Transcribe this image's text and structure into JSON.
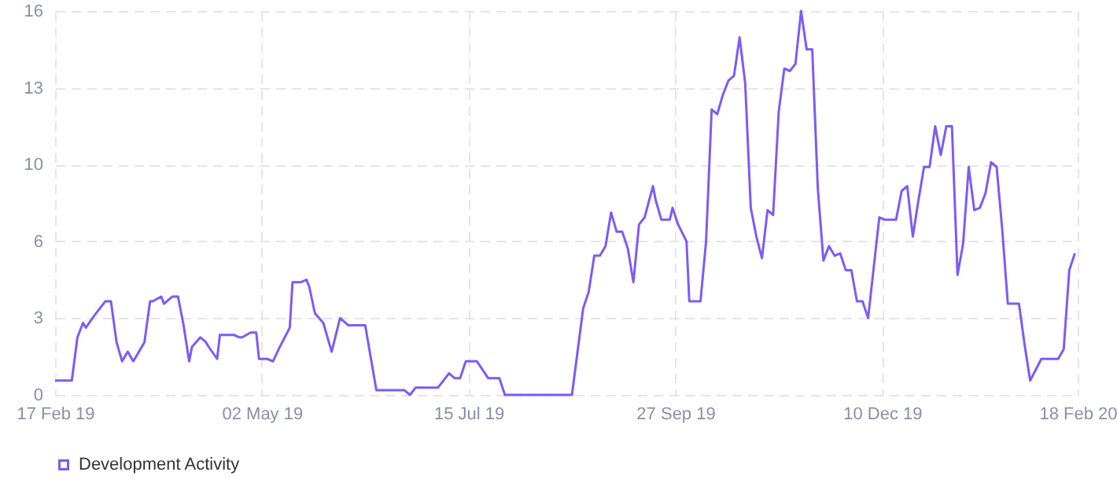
{
  "chart_data": {
    "type": "line",
    "x": [
      "2019-02-17",
      "2019-02-23",
      "2019-02-25",
      "2019-02-27",
      "2019-02-28",
      "2019-03-03",
      "2019-03-05",
      "2019-03-07",
      "2019-03-09",
      "2019-03-11",
      "2019-03-13",
      "2019-03-15",
      "2019-03-17",
      "2019-03-18",
      "2019-03-21",
      "2019-03-23",
      "2019-03-24",
      "2019-03-27",
      "2019-03-28",
      "2019-03-31",
      "2019-04-02",
      "2019-04-04",
      "2019-04-06",
      "2019-04-07",
      "2019-04-10",
      "2019-04-12",
      "2019-04-13",
      "2019-04-16",
      "2019-04-17",
      "2019-04-22",
      "2019-04-24",
      "2019-04-25",
      "2019-04-28",
      "2019-04-30",
      "2019-05-01",
      "2019-05-04",
      "2019-05-06",
      "2019-05-08",
      "2019-05-12",
      "2019-05-13",
      "2019-05-16",
      "2019-05-18",
      "2019-05-19",
      "2019-05-21",
      "2019-05-24",
      "2019-05-26",
      "2019-05-27",
      "2019-05-30",
      "2019-06-02",
      "2019-06-08",
      "2019-06-12",
      "2019-06-22",
      "2019-06-24",
      "2019-06-26",
      "2019-07-04",
      "2019-07-08",
      "2019-07-10",
      "2019-07-12",
      "2019-07-14",
      "2019-07-18",
      "2019-07-22",
      "2019-07-26",
      "2019-07-28",
      "2019-08-07",
      "2019-08-21",
      "2019-08-25",
      "2019-08-27",
      "2019-08-29",
      "2019-08-31",
      "2019-09-02",
      "2019-09-04",
      "2019-09-06",
      "2019-09-08",
      "2019-09-10",
      "2019-09-12",
      "2019-09-14",
      "2019-09-16",
      "2019-09-19",
      "2019-09-20",
      "2019-09-22",
      "2019-09-25",
      "2019-09-26",
      "2019-09-28",
      "2019-10-01",
      "2019-10-02",
      "2019-10-06",
      "2019-10-08",
      "2019-10-10",
      "2019-10-12",
      "2019-10-14",
      "2019-10-16",
      "2019-10-18",
      "2019-10-20",
      "2019-10-22",
      "2019-10-24",
      "2019-10-26",
      "2019-10-28",
      "2019-10-30",
      "2019-11-01",
      "2019-11-03",
      "2019-11-05",
      "2019-11-07",
      "2019-11-09",
      "2019-11-11",
      "2019-11-13",
      "2019-11-15",
      "2019-11-17",
      "2019-11-19",
      "2019-11-21",
      "2019-11-23",
      "2019-11-25",
      "2019-11-27",
      "2019-11-29",
      "2019-12-01",
      "2019-12-03",
      "2019-12-05",
      "2019-12-09",
      "2019-12-11",
      "2019-12-15",
      "2019-12-17",
      "2019-12-19",
      "2019-12-21",
      "2019-12-23",
      "2019-12-25",
      "2019-12-27",
      "2019-12-29",
      "2019-12-31",
      "2020-01-02",
      "2020-01-04",
      "2020-01-06",
      "2020-01-08",
      "2020-01-10",
      "2020-01-12",
      "2020-01-14",
      "2020-01-16",
      "2020-01-18",
      "2020-01-20",
      "2020-01-22",
      "2020-01-24",
      "2020-01-28",
      "2020-01-30",
      "2020-02-01",
      "2020-02-05",
      "2020-02-11",
      "2020-02-13",
      "2020-02-15",
      "2020-02-17"
    ],
    "series": [
      {
        "name": "Development Activity",
        "color": "#7b5cf5",
        "values": [
          0.6,
          0.6,
          2.4,
          3.0,
          2.8,
          3.3,
          3.6,
          3.9,
          3.9,
          2.2,
          1.4,
          1.8,
          1.4,
          1.6,
          2.2,
          3.9,
          3.9,
          4.1,
          3.8,
          4.1,
          4.1,
          2.9,
          1.4,
          2.0,
          2.4,
          2.2,
          2.0,
          1.5,
          2.5,
          2.5,
          2.4,
          2.4,
          2.6,
          2.6,
          1.5,
          1.5,
          1.4,
          1.9,
          2.8,
          4.7,
          4.7,
          4.8,
          4.5,
          3.4,
          3.0,
          2.2,
          1.8,
          3.2,
          2.9,
          2.9,
          0.2,
          0.2,
          0,
          0.3,
          0.3,
          0.9,
          0.7,
          0.7,
          1.4,
          1.4,
          0.7,
          0.7,
          0,
          0,
          0,
          3.6,
          4.3,
          5.8,
          5.8,
          6.2,
          7.6,
          6.8,
          6.8,
          6.1,
          4.7,
          7.1,
          7.4,
          8.7,
          8.1,
          7.3,
          7.3,
          7.8,
          7.1,
          6.4,
          3.9,
          3.9,
          6.4,
          11.9,
          11.7,
          12.5,
          13.1,
          13.3,
          14.9,
          13.0,
          7.8,
          6.6,
          5.7,
          7.7,
          7.5,
          11.8,
          13.6,
          13.5,
          13.8,
          16.0,
          14.4,
          14.4,
          8.6,
          5.6,
          6.2,
          5.8,
          5.9,
          5.2,
          5.2,
          3.9,
          3.9,
          3.2,
          7.4,
          7.3,
          7.3,
          8.5,
          8.7,
          6.6,
          8.1,
          9.5,
          9.5,
          11.2,
          10.0,
          11.2,
          11.2,
          5.0,
          6.3,
          9.5,
          7.7,
          7.8,
          8.4,
          9.7,
          9.5,
          6.9,
          3.8,
          3.8,
          2.1,
          0.6,
          1.5,
          1.5,
          1.9,
          5.2,
          5.9
        ]
      }
    ],
    "xlim": [
      "2019-02-17",
      "2020-02-18"
    ],
    "xticks": [
      {
        "value": "2019-02-17",
        "label": "17 Feb 19"
      },
      {
        "value": "2019-05-02",
        "label": "02 May 19"
      },
      {
        "value": "2019-07-15",
        "label": "15 Jul 19"
      },
      {
        "value": "2019-09-27",
        "label": "27 Sep 19"
      },
      {
        "value": "2019-12-10",
        "label": "10 Dec 19"
      },
      {
        "value": "2020-02-18",
        "label": "18 Feb 20"
      }
    ],
    "ylim": [
      0,
      16
    ],
    "yticks": [
      0,
      {
        "value": 3.2,
        "label": "3"
      },
      {
        "value": 6.4,
        "label": "6"
      },
      {
        "value": 9.6,
        "label": "10"
      },
      {
        "value": 12.8,
        "label": "13"
      },
      16
    ],
    "grid": true,
    "legend": "bottom"
  }
}
